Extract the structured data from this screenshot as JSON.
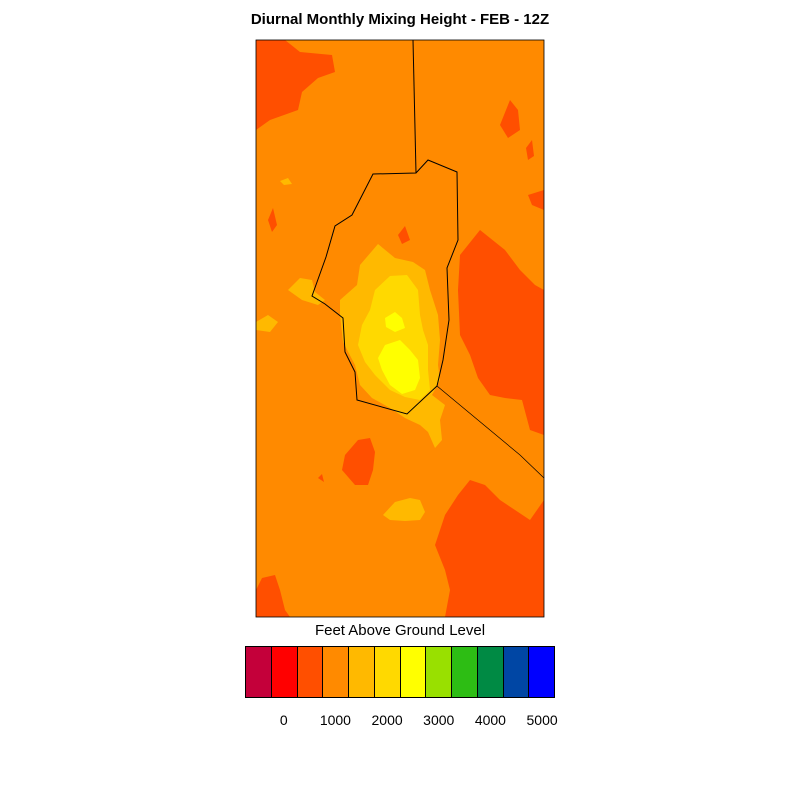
{
  "title": "Diurnal Monthly Mixing Height - FEB - 12Z",
  "legend": {
    "title": "Feet Above Ground Level",
    "colors": [
      "#c4003a",
      "#ff0000",
      "#ff4f00",
      "#ff8a00",
      "#ffb900",
      "#ffd900",
      "#ffff00",
      "#99e000",
      "#2dbd14",
      "#008a44",
      "#0046a4",
      "#0000ff"
    ],
    "ticks": [
      "0",
      "1000",
      "2000",
      "3000",
      "4000",
      "5000"
    ]
  },
  "map_colors": {
    "background_band": "#ff8a00",
    "high_band": "#ff4f00",
    "mid_band": "#ffb900",
    "upper_band": "#ffd900",
    "peak_band": "#ffff00",
    "outline": "#000000"
  }
}
